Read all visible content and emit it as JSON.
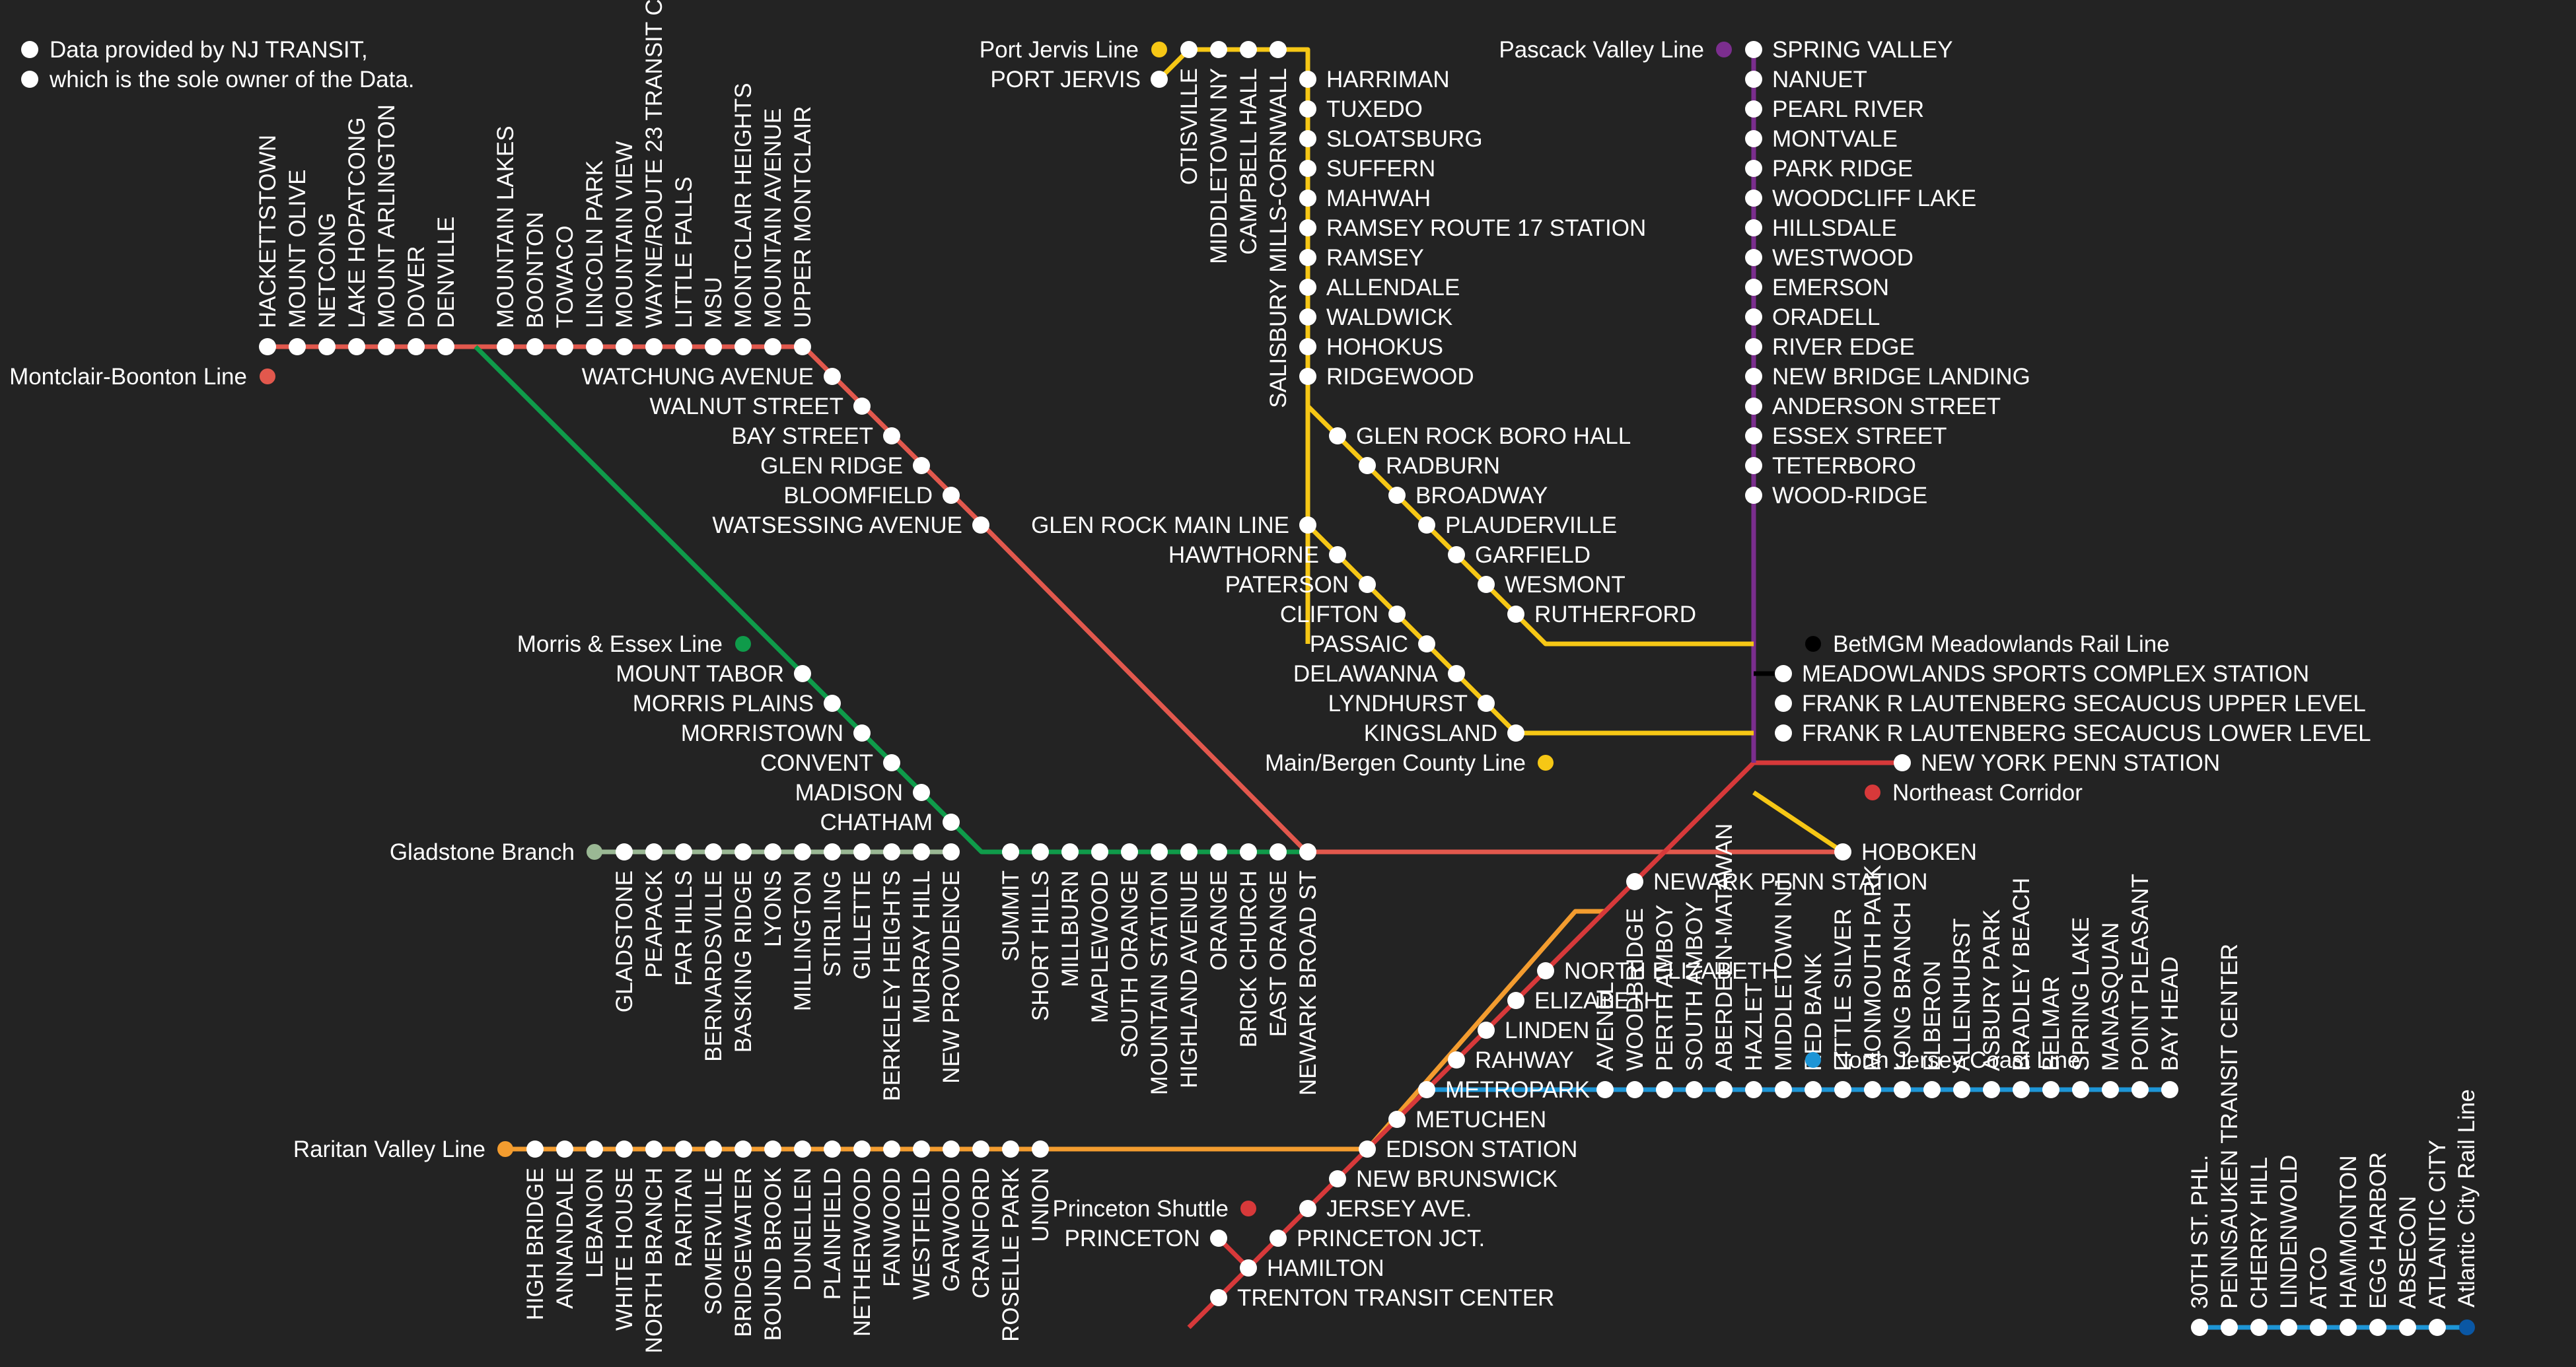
{
  "credit": [
    "Data provided by NJ TRANSIT,",
    "which is the sole owner of the Data."
  ],
  "colors": {
    "background": "#232323",
    "montclair": "#e2584d",
    "morris": "#0f9b4a",
    "gladstone": "#9ab894",
    "raritan": "#f39c2f",
    "northeast": "#d7393a",
    "coast": "#1d95d6",
    "portjervis": "#f6c715",
    "pascack": "#7b2e8e",
    "meadowlands": "#000000",
    "atlantic": "#0a57a4"
  },
  "lines": [
    {
      "name": "Montclair-Boonton Line",
      "color": "#e2584d"
    },
    {
      "name": "Morris & Essex Line",
      "color": "#0f9b4a"
    },
    {
      "name": "Gladstone Branch",
      "color": "#9ab894"
    },
    {
      "name": "Raritan Valley Line",
      "color": "#f39c2f"
    },
    {
      "name": "Princeton Shuttle",
      "color": "#d7393a"
    },
    {
      "name": "North Jersey Coast Line",
      "color": "#1d95d6"
    },
    {
      "name": "Port Jervis Line",
      "color": "#f6c715"
    },
    {
      "name": "Pascack Valley Line",
      "color": "#7b2e8e"
    },
    {
      "name": "Main/Bergen County Line",
      "color": "#f6c715"
    },
    {
      "name": "BetMGM Meadowlands Rail Line",
      "color": "#000000"
    },
    {
      "name": "Northeast Corridor",
      "color": "#d7393a"
    },
    {
      "name": "Atlantic City Rail Line",
      "color": "#0a57a4"
    }
  ],
  "stations": {
    "montclair_west": [
      "HACKETTSTOWN",
      "MOUNT OLIVE",
      "NETCONG",
      "LAKE HOPATCONG",
      "MOUNT ARLINGTON",
      "DOVER",
      "DENVILLE"
    ],
    "montclair_north": [
      "MOUNTAIN LAKES",
      "BOONTON",
      "TOWACO",
      "LINCOLN PARK",
      "MOUNTAIN VIEW",
      "WAYNE/ROUTE 23 TRANSIT CENTER",
      "LITTLE FALLS",
      "MSU",
      "MONTCLAIR HEIGHTS",
      "MOUNTAIN AVENUE",
      "UPPER MONTCLAIR"
    ],
    "montclair_diag": [
      "WATCHUNG AVENUE",
      "WALNUT STREET",
      "BAY STREET",
      "GLEN RIDGE",
      "BLOOMFIELD",
      "WATSESSING AVENUE"
    ],
    "morris": [
      "MOUNT TABOR",
      "MORRIS PLAINS",
      "MORRISTOWN",
      "CONVENT",
      "MADISON",
      "CHATHAM"
    ],
    "gladstone": [
      "GLADSTONE",
      "PEAPACK",
      "FAR HILLS",
      "BERNARDSVILLE",
      "BASKING RIDGE",
      "LYONS",
      "MILLINGTON",
      "STIRLING",
      "GILLETTE",
      "BERKELEY HEIGHTS",
      "MURRAY HILL",
      "NEW PROVIDENCE"
    ],
    "essex": [
      "SUMMIT",
      "SHORT HILLS",
      "MILLBURN",
      "MAPLEWOOD",
      "SOUTH ORANGE",
      "MOUNTAIN STATION",
      "HIGHLAND AVENUE",
      "ORANGE",
      "BRICK CHURCH",
      "EAST ORANGE",
      "NEWARK BROAD ST"
    ],
    "raritan": [
      "HIGH BRIDGE",
      "ANNANDALE",
      "LEBANON",
      "WHITE HOUSE",
      "NORTH BRANCH",
      "RARITAN",
      "SOMERVILLE",
      "BRIDGEWATER",
      "BOUND BROOK",
      "DUNELLEN",
      "PLAINFIELD",
      "NETHERWOOD",
      "FANWOOD",
      "WESTFIELD",
      "GARWOOD",
      "CRANFORD",
      "ROSELLE PARK",
      "UNION"
    ],
    "portjervis_top": [
      "OTISVILLE",
      "MIDDLETOWN NY",
      "CAMPBELL HALL",
      "SALISBURY MILLS-CORNWALL"
    ],
    "portjervis_terminus": "PORT JERVIS",
    "portjervis_down": [
      "HARRIMAN",
      "TUXEDO",
      "SLOATSBURG",
      "SUFFERN",
      "MAHWAH",
      "RAMSEY ROUTE 17 STATION",
      "RAMSEY",
      "ALLENDALE",
      "WALDWICK",
      "HOHOKUS",
      "RIDGEWOOD"
    ],
    "bergen": [
      "GLEN ROCK BORO HALL",
      "RADBURN",
      "BROADWAY",
      "PLAUDERVILLE",
      "GARFIELD",
      "WESMONT",
      "RUTHERFORD"
    ],
    "main": [
      "GLEN ROCK MAIN LINE",
      "HAWTHORNE",
      "PATERSON",
      "CLIFTON",
      "PASSAIC",
      "DELAWANNA",
      "LYNDHURST",
      "KINGSLAND"
    ],
    "pascack": [
      "SPRING VALLEY",
      "NANUET",
      "PEARL RIVER",
      "MONTVALE",
      "PARK RIDGE",
      "WOODCLIFF LAKE",
      "HILLSDALE",
      "WESTWOOD",
      "EMERSON",
      "ORADELL",
      "RIVER EDGE",
      "NEW BRIDGE LANDING",
      "ANDERSON STREET",
      "ESSEX STREET",
      "TETERBORO",
      "WOOD-RIDGE"
    ],
    "secaucus": [
      "MEADOWLANDS SPORTS COMPLEX STATION",
      "FRANK R LAUTENBERG SECAUCUS UPPER LEVEL",
      "FRANK R LAUTENBERG SECAUCUS LOWER LEVEL"
    ],
    "terminals": [
      "NEW YORK PENN STATION",
      "HOBOKEN",
      "NEWARK PENN STATION"
    ],
    "nec": [
      "NORTH ELIZABETH",
      "ELIZABETH",
      "LINDEN",
      "RAHWAY",
      "METROPARK",
      "METUCHEN",
      "EDISON STATION",
      "NEW BRUNSWICK",
      "JERSEY AVE.",
      "PRINCETON JCT.",
      "HAMILTON",
      "TRENTON TRANSIT CENTER"
    ],
    "princeton": "PRINCETON",
    "coast": [
      "AVENEL",
      "WOODBRIDGE",
      "PERTH AMBOY",
      "SOUTH AMBOY",
      "ABERDEEN-MATAWAN",
      "HAZLET",
      "MIDDLETOWN NJ",
      "RED BANK",
      "LITTLE SILVER",
      "MONMOUTH PARK",
      "LONG BRANCH",
      "ELBERON",
      "ALLENHURST",
      "ASBURY PARK",
      "BRADLEY BEACH",
      "BELMAR",
      "SPRING LAKE",
      "MANASQUAN",
      "POINT PLEASANT",
      "BAY HEAD"
    ],
    "atlantic": [
      "30TH ST. PHL.",
      "PENNSAUKEN TRANSIT CENTER",
      "CHERRY HILL",
      "LINDENWOLD",
      "ATCO",
      "HAMMONTON",
      "EGG HARBOR",
      "ABSECON",
      "ATLANTIC CITY"
    ]
  }
}
